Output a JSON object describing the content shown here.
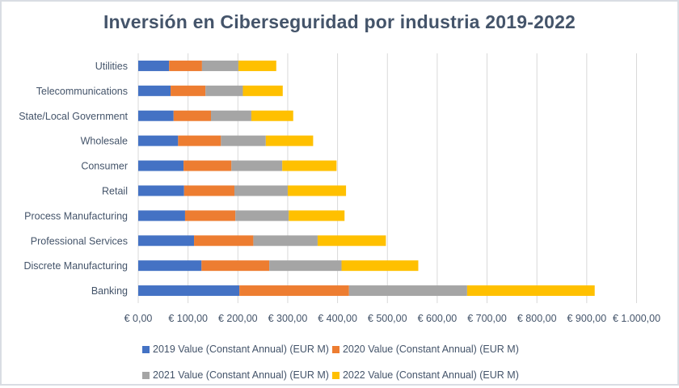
{
  "chart_data": {
    "type": "bar",
    "orientation": "horizontal",
    "stacked": true,
    "title": "Inversión en Ciberseguridad por industria 2019-2022",
    "xlabel": "",
    "ylabel": "",
    "xlim": [
      0,
      1000
    ],
    "grid": true,
    "legend_position": "bottom",
    "categories": [
      "Banking",
      "Discrete Manufacturing",
      "Professional Services",
      "Process Manufacturing",
      "Retail",
      "Consumer",
      "Wholesale",
      "State/Local Government",
      "Telecommunications",
      "Utilities"
    ],
    "x_ticks": [
      0,
      100,
      200,
      300,
      400,
      500,
      600,
      700,
      800,
      900,
      1000
    ],
    "x_tick_labels": [
      "€ 0,00",
      "€ 100,00",
      "€ 200,00",
      "€ 300,00",
      "€ 400,00",
      "€ 500,00",
      "€ 600,00",
      "€ 700,00",
      "€ 800,00",
      "€ 900,00",
      "€ 1.000,00"
    ],
    "series": [
      {
        "name": "2019 Value (Constant Annual) (EUR M)",
        "color": "#4472c4",
        "values": [
          203,
          127,
          112,
          94,
          92,
          91,
          80,
          71,
          65,
          62
        ]
      },
      {
        "name": "2020 Value (Constant Annual) (EUR M)",
        "color": "#ed7d31",
        "values": [
          220,
          136,
          119,
          101,
          101,
          96,
          86,
          75,
          70,
          66
        ]
      },
      {
        "name": "2021 Value (Constant Annual) (EUR M)",
        "color": "#a5a5a5",
        "values": [
          237,
          145,
          129,
          107,
          107,
          102,
          90,
          81,
          75,
          73
        ]
      },
      {
        "name": "2022 Value (Constant Annual) (EUR M)",
        "color": "#ffc000",
        "values": [
          256,
          154,
          137,
          112,
          117,
          109,
          95,
          84,
          80,
          76
        ]
      }
    ]
  },
  "colors": {
    "title": "#44546a",
    "label": "#44546a",
    "grid": "#d9d9d9"
  }
}
